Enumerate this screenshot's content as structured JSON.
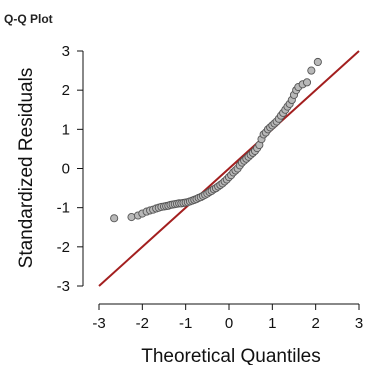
{
  "chart_data": {
    "type": "scatter",
    "title": "Q-Q Plot",
    "xlabel": "Theoretical Quantiles",
    "ylabel": "Standardized Residuals",
    "xlim": [
      -3,
      3
    ],
    "ylim": [
      -3,
      3
    ],
    "xticks": [
      "-3",
      "-2",
      "-1",
      "0",
      "1",
      "2",
      "3"
    ],
    "yticks": [
      "3",
      "2",
      "1",
      "0",
      "-1",
      "-2",
      "-3"
    ],
    "grid": false,
    "reference_line": {
      "from": [
        -3,
        -3
      ],
      "to": [
        3,
        3
      ],
      "color": "#a31f1f"
    },
    "point_color": "#b8b8b8",
    "point_edge_color": "#555555",
    "x": [
      -2.65,
      -2.25,
      -2.1,
      -2.0,
      -1.9,
      -1.82,
      -1.75,
      -1.68,
      -1.62,
      -1.56,
      -1.5,
      -1.45,
      -1.4,
      -1.35,
      -1.3,
      -1.25,
      -1.2,
      -1.15,
      -1.1,
      -1.05,
      -1.0,
      -0.95,
      -0.9,
      -0.85,
      -0.8,
      -0.75,
      -0.7,
      -0.65,
      -0.6,
      -0.55,
      -0.5,
      -0.45,
      -0.4,
      -0.35,
      -0.3,
      -0.25,
      -0.2,
      -0.15,
      -0.1,
      -0.05,
      0.0,
      0.05,
      0.1,
      0.15,
      0.2,
      0.25,
      0.3,
      0.35,
      0.4,
      0.45,
      0.5,
      0.55,
      0.6,
      0.65,
      0.7,
      0.75,
      0.8,
      0.85,
      0.9,
      0.95,
      1.0,
      1.05,
      1.1,
      1.15,
      1.2,
      1.25,
      1.3,
      1.35,
      1.4,
      1.45,
      1.5,
      1.55,
      1.6,
      1.7,
      1.8,
      1.9,
      2.05
    ],
    "y": [
      -1.27,
      -1.24,
      -1.2,
      -1.15,
      -1.1,
      -1.07,
      -1.05,
      -1.02,
      -1.0,
      -0.98,
      -0.97,
      -0.96,
      -0.95,
      -0.93,
      -0.92,
      -0.91,
      -0.9,
      -0.89,
      -0.89,
      -0.88,
      -0.87,
      -0.86,
      -0.84,
      -0.82,
      -0.8,
      -0.78,
      -0.75,
      -0.73,
      -0.7,
      -0.67,
      -0.64,
      -0.6,
      -0.57,
      -0.53,
      -0.5,
      -0.46,
      -0.42,
      -0.38,
      -0.33,
      -0.28,
      -0.22,
      -0.17,
      -0.1,
      -0.05,
      0.0,
      0.08,
      0.15,
      0.2,
      0.25,
      0.3,
      0.35,
      0.4,
      0.45,
      0.52,
      0.6,
      0.75,
      0.87,
      0.92,
      1.0,
      1.05,
      1.1,
      1.15,
      1.2,
      1.27,
      1.35,
      1.42,
      1.5,
      1.58,
      1.65,
      1.75,
      1.88,
      2.0,
      2.08,
      2.15,
      2.2,
      2.5,
      2.72
    ]
  }
}
